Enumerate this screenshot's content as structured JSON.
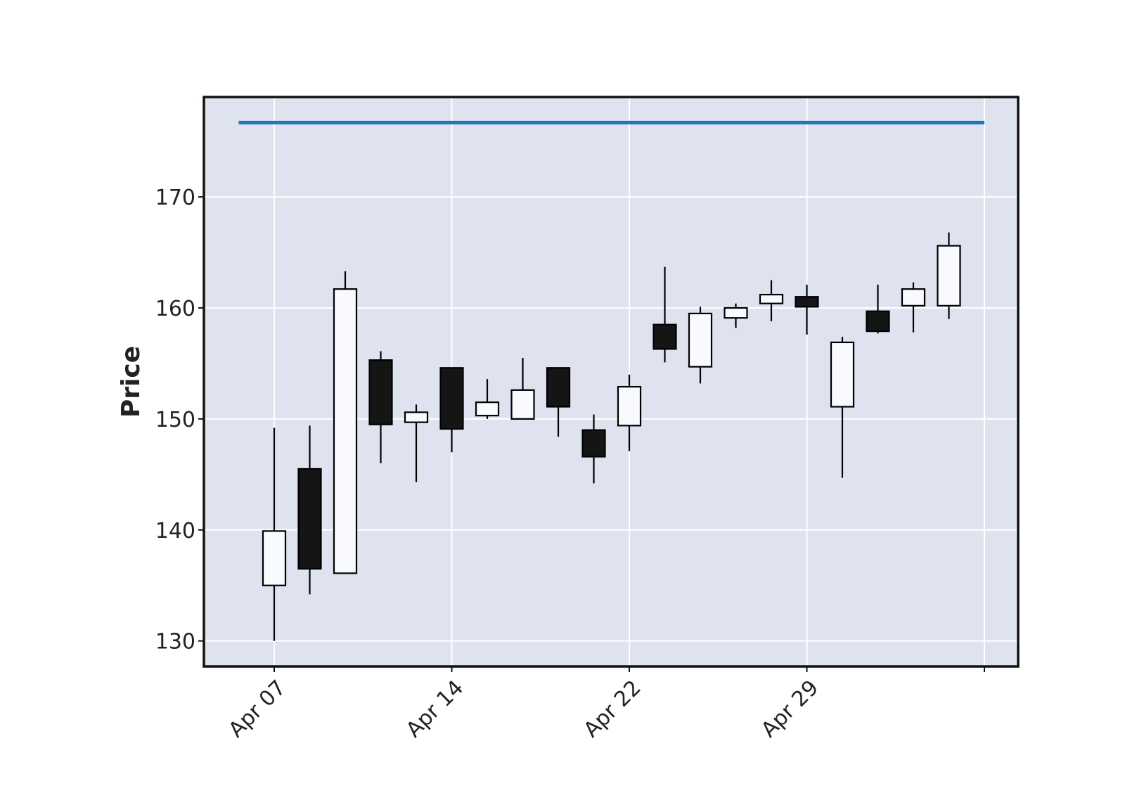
{
  "chart_data": {
    "type": "candlestick",
    "ylabel": "Price",
    "ylim": [
      127.7,
      179.0
    ],
    "yticks": [
      130,
      140,
      150,
      160,
      170
    ],
    "grid": true,
    "x_tick_labels": [
      {
        "index": 0,
        "label": "Apr 07"
      },
      {
        "index": 5,
        "label": "Apr 14"
      },
      {
        "index": 10,
        "label": "Apr 22"
      },
      {
        "index": 15,
        "label": "Apr 29"
      },
      {
        "index": 20,
        "label": ""
      }
    ],
    "candles": [
      {
        "open": 135.0,
        "high": 149.2,
        "low": 130.0,
        "close": 139.9
      },
      {
        "open": 145.5,
        "high": 149.4,
        "low": 134.2,
        "close": 136.5
      },
      {
        "open": 136.1,
        "high": 163.3,
        "low": 136.1,
        "close": 161.7
      },
      {
        "open": 155.3,
        "high": 156.1,
        "low": 146.0,
        "close": 149.5
      },
      {
        "open": 149.7,
        "high": 151.3,
        "low": 144.3,
        "close": 150.6
      },
      {
        "open": 154.6,
        "high": 154.6,
        "low": 147.0,
        "close": 149.1
      },
      {
        "open": 150.3,
        "high": 153.6,
        "low": 150.0,
        "close": 151.5
      },
      {
        "open": 150.0,
        "high": 155.5,
        "low": 150.0,
        "close": 152.6
      },
      {
        "open": 154.6,
        "high": 154.6,
        "low": 148.4,
        "close": 151.1
      },
      {
        "open": 149.0,
        "high": 150.4,
        "low": 144.2,
        "close": 146.6
      },
      {
        "open": 149.4,
        "high": 154.0,
        "low": 147.1,
        "close": 152.9
      },
      {
        "open": 158.5,
        "high": 163.7,
        "low": 155.1,
        "close": 156.3
      },
      {
        "open": 154.7,
        "high": 160.1,
        "low": 153.2,
        "close": 159.5
      },
      {
        "open": 159.1,
        "high": 160.4,
        "low": 158.2,
        "close": 160.0
      },
      {
        "open": 160.4,
        "high": 162.5,
        "low": 158.8,
        "close": 161.2
      },
      {
        "open": 161.0,
        "high": 162.1,
        "low": 157.6,
        "close": 160.1
      },
      {
        "open": 151.1,
        "high": 157.4,
        "low": 144.7,
        "close": 156.9
      },
      {
        "open": 159.7,
        "high": 162.1,
        "low": 157.7,
        "close": 157.9
      },
      {
        "open": 160.2,
        "high": 162.3,
        "low": 157.8,
        "close": 161.7
      },
      {
        "open": 160.2,
        "high": 166.8,
        "low": 159.0,
        "close": 165.6
      }
    ],
    "hline": {
      "value": 176.7,
      "color": "#1f77b4"
    }
  },
  "colors": {
    "plot_background": "#dee3ef",
    "grid": "#ffffff",
    "frame": "#111111",
    "up_body": "#f8fafd",
    "down_body": "#151515",
    "candle_edge": "#000000",
    "hline": "#1f77b4"
  }
}
